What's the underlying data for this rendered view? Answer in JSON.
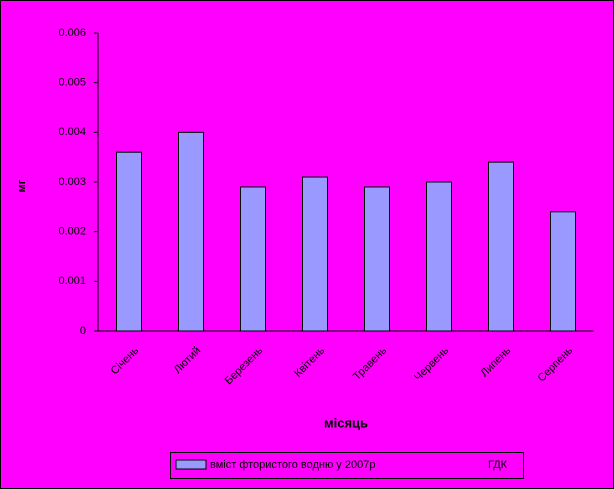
{
  "chart_data": {
    "type": "bar",
    "y_label": "мг",
    "x_label": "місяць",
    "categories": [
      "Січень",
      "Лютий",
      "Березень",
      "Квітень",
      "Травень",
      "Червень",
      "Липень",
      "Серпень"
    ],
    "series": [
      {
        "name": "вміст фтористого водню у 2007р",
        "color": "#9999ff",
        "values": [
          0.0036,
          0.004,
          0.0029,
          0.0031,
          0.0029,
          0.003,
          0.0034,
          0.0024
        ]
      },
      {
        "name": "ГДК",
        "values": [
          null,
          null,
          null,
          null,
          null,
          null,
          null,
          null
        ]
      }
    ],
    "ylim": [
      0,
      0.006
    ],
    "yticks": [
      0,
      0.001,
      0.002,
      0.003,
      0.004,
      0.005,
      0.006
    ]
  }
}
